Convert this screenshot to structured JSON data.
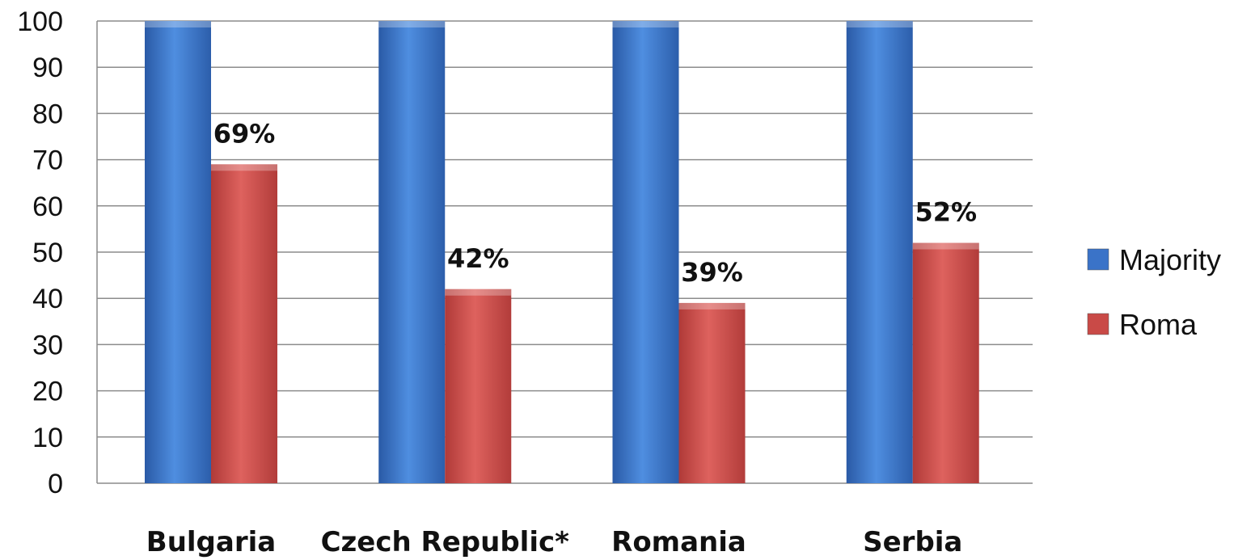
{
  "chart_data": {
    "type": "bar",
    "categories": [
      "Bulgaria",
      "Czech Republic*",
      "Romania",
      "Serbia"
    ],
    "series": [
      {
        "name": "Majority",
        "values": [
          100,
          100,
          100,
          100
        ],
        "color": "#3a73c8",
        "labels": [
          "",
          "",
          "",
          ""
        ]
      },
      {
        "name": "Roma",
        "values": [
          69,
          42,
          39,
          52
        ],
        "color": "#c94a47",
        "labels": [
          "69%",
          "42%",
          "39%",
          "52%"
        ]
      }
    ],
    "ylim": [
      0,
      100
    ],
    "yticks": [
      "0",
      "10",
      "20",
      "30",
      "40",
      "50",
      "60",
      "70",
      "80",
      "90",
      "100"
    ],
    "grid": true,
    "legend_position": "right",
    "title": "",
    "xlabel": "",
    "ylabel": ""
  }
}
